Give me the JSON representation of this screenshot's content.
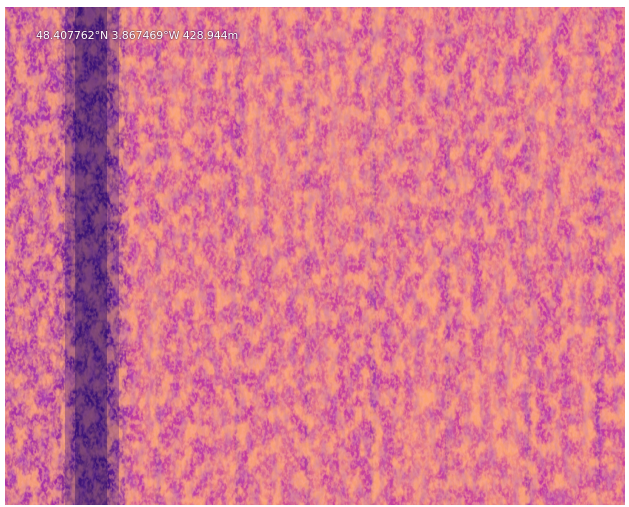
{
  "overlay": {
    "coordinates": "48.407762°N 3.867469°W 428.944m"
  },
  "palette": {
    "background_magenta": "#b62fb8",
    "hot_orange": "#ff6a2a",
    "warm_magenta": "#e2459a",
    "cool_purple": "#5a1a8c",
    "cold_strip": "#3e1478"
  }
}
